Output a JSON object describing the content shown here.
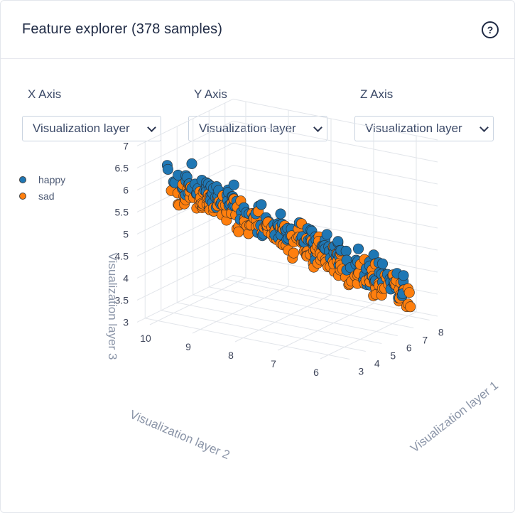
{
  "header": {
    "title": "Feature explorer (378 samples)",
    "help_icon": "help-circle-icon"
  },
  "selectors": [
    {
      "label": "X Axis",
      "value": "Visualization layer"
    },
    {
      "label": "Y Axis",
      "value": "Visualization layer"
    },
    {
      "label": "Z Axis",
      "value": "Visualization layer"
    }
  ],
  "legend": [
    {
      "name": "happy",
      "color": "#1f77b4"
    },
    {
      "name": "sad",
      "color": "#ff7f0e"
    }
  ],
  "chart_data": {
    "type": "scatter",
    "subtype": "3d",
    "axes": {
      "x": {
        "label": "Visualization layer 1",
        "ticks": [
          3,
          4,
          5,
          6,
          7,
          8
        ],
        "range": [
          2.5,
          8.5
        ]
      },
      "y": {
        "label": "Visualization layer 2",
        "ticks": [
          6,
          7,
          8,
          9,
          10
        ],
        "range": [
          5.5,
          10.3
        ]
      },
      "z": {
        "label": "Visualization layer 3",
        "ticks": [
          "3",
          "3.5",
          "4",
          "4.5",
          "5",
          "5.5",
          "6",
          "6.5",
          "7"
        ],
        "range": [
          3,
          7
        ]
      }
    },
    "series": [
      {
        "name": "happy",
        "color": "#1f77b4"
      },
      {
        "name": "sad",
        "color": "#ff7f0e"
      }
    ],
    "count": 378
  }
}
